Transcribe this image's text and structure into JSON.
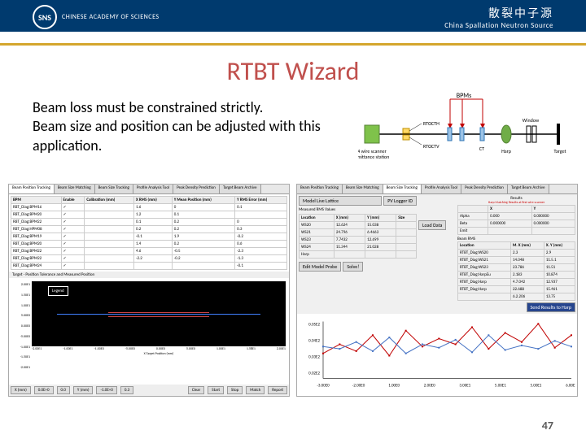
{
  "header": {
    "logoText": "SNS",
    "logoSubtext": "CHINESE ACADEMY OF SCIENCES",
    "cnTitle": "散裂中子源",
    "enTitle": "China Spallation Neutron Source"
  },
  "title": "RTBT Wizard",
  "descriptionLine1": "Beam loss must be constrained strictly.",
  "descriptionLine2": "Beam size and position can be adjusted with this application.",
  "diagram": {
    "bpmsLabel": "BPMs",
    "elements": [
      {
        "label": "4 wire scanner emittance station",
        "type": "box",
        "color": "#7fc24b",
        "x": 10
      },
      {
        "label": "RTOCTH",
        "type": "small",
        "color": "#ffd966",
        "x": 60,
        "above": true
      },
      {
        "label": "RTOCTV",
        "type": "small",
        "color": "#ffd966",
        "x": 60,
        "below": true
      },
      {
        "label": "",
        "type": "bpm",
        "color": "#9cc3e6",
        "x": 110
      },
      {
        "label": "",
        "type": "bpm",
        "color": "#9cc3e6",
        "x": 125
      },
      {
        "label": "CT",
        "type": "bpm",
        "color": "#9cc3e6",
        "x": 150,
        "below": true
      },
      {
        "label": "Harp",
        "type": "ellipse",
        "color": "#70ad47",
        "x": 180,
        "below": true
      },
      {
        "label": "Window",
        "type": "box-outline",
        "color": "#000",
        "x": 210,
        "above": true
      },
      {
        "label": "Target",
        "type": "bar",
        "color": "#000",
        "x": 245,
        "right": true
      }
    ],
    "lineColor": "#000",
    "arrowColor": "#c00000"
  },
  "leftPanel": {
    "tabs": [
      "Beam Position Tracking",
      "Beam Size Matching",
      "Beam Size Tracking",
      "Profile Analysis Tool",
      "Peak Density Prediction",
      "Target Beam Archive"
    ],
    "activeTab": 0,
    "columns": [
      "BPM",
      "Enable",
      "Calibration (mm)",
      "X RMS (mm)",
      "Y Mean Position (mm)",
      "Y RMS Error (mm)"
    ],
    "rows": [
      [
        "RBT_Diag:BPM16",
        "✓",
        "",
        "1.6",
        "0",
        "0.1"
      ],
      [
        "RBT_Diag:BPM20",
        "✓",
        "",
        "1.2",
        "0.1",
        ""
      ],
      [
        "RBT_Diag:BPM22",
        "✓",
        "",
        "0.1",
        "0.2",
        "0"
      ],
      [
        "RBT_Diag:HPM08",
        "✓",
        "",
        "0.2",
        "0.2",
        "0.3"
      ],
      [
        "RBT_Diag:BPM19",
        "✓",
        "",
        "-0.1",
        "1.9",
        "-0.2"
      ],
      [
        "RBT_Diag:BPM20",
        "✓",
        "",
        "1.4",
        "0.2",
        "0.6"
      ],
      [
        "RBT_Diag:BPM22",
        "✓",
        "",
        "4.6",
        "-0.5",
        "-2.3"
      ],
      [
        "RBT_Diag:BPM22",
        "✓",
        "",
        "-2.2",
        "-0.2",
        "-1.3"
      ],
      [
        "RBT_Diag:BPM24",
        "✓",
        "",
        "",
        "",
        "-0.1"
      ]
    ],
    "chartTitle": "Target - Position Tolerance and Measured Position",
    "legendTitle": "Legend",
    "yLabel": "Y Final Position (mm)",
    "xLabel": "X Target Position (mm)",
    "yTicks": [
      "2.00E1",
      "1.50E1",
      "1.00E1",
      "5.00E0",
      "0.00E0",
      "-5.00E0",
      "-1.00E1",
      "-1.50E1",
      "-2.00E1"
    ],
    "xTicks": [
      "-2.00E1",
      "-1.00E1",
      "-1.00E0",
      "-5.00E0",
      "0.00E0",
      "5.00E0",
      "1.00E1",
      "1.58E1",
      "2.00E1"
    ],
    "bottomControls": {
      "labels": [
        "X (mm)",
        "0.0E+0",
        "0.0",
        "Y (mm)",
        "-1.0E+0",
        "0.3"
      ],
      "buttons": [
        "Clear",
        "Start",
        "Stop",
        "Match",
        "Report"
      ]
    }
  },
  "rightPanel": {
    "tabs": [
      "Beam Position Tracking",
      "Beam Size Matching",
      "Beam Size Tracking",
      "Profile Analysis Tool",
      "Peak Density Prediction",
      "Target Beam Archive"
    ],
    "activeTab": 2,
    "modelSelect": "Model Live Lattice",
    "pvLogger": "PV Logger ID",
    "measuredTitle": "Measured RMS Values",
    "measuredCols": [
      "Location",
      "X (mm)",
      "Y (mm)",
      "Size"
    ],
    "measuredRows": [
      [
        "WS20",
        "12.624",
        "15.038",
        ""
      ],
      [
        "WS21",
        "24.796",
        "6.4663",
        ""
      ],
      [
        "WS23",
        "7.7432",
        "12.699",
        ""
      ],
      [
        "WS24",
        "11.344",
        "21.028",
        ""
      ],
      [
        "Harp",
        "",
        "",
        ""
      ]
    ],
    "loadButton": "Load Data",
    "editButton": "Edit Model Probe",
    "solveButton": "Solve!",
    "resultsTitle": "Results",
    "resultsSubtitle": "Harp Matching Results at first wire scanner",
    "resultsCols": [
      "",
      "X",
      "Y"
    ],
    "resultsRows1": [
      [
        "Alpha",
        "0.000",
        "0.000000"
      ],
      [
        "Beta",
        "0.000000",
        "0.000000"
      ],
      [
        "Emit",
        "",
        ""
      ]
    ],
    "beamTitle": "Beam RMS",
    "beamCols": [
      "Location",
      "M. X (mm)",
      "X. Y (mm)"
    ],
    "beamRows": [
      [
        "RTBT_Diag:WS20",
        "2.3",
        "2.9"
      ],
      [
        "RTBT_Diag:WS21",
        "14.048",
        "11.5.1"
      ],
      [
        "RTBT_Diag:WS23",
        "23.786",
        "11.51"
      ],
      [
        "RTBT_Diag:HarpEu",
        "2.183",
        "10.874"
      ],
      [
        "RTBT_Diag:Harp",
        "4.7.042",
        "12.937"
      ],
      [
        "RTBT_Diag:Harp",
        "22.688",
        "15.461"
      ],
      [
        "",
        "6.2.206",
        "13.75"
      ]
    ],
    "sendButton": "Send Results to Harp",
    "chart": {
      "series1Color": "#c00000",
      "series2Color": "#4472c4",
      "yTicks": [
        "0.05E2",
        "0.04E2",
        "0.03E2",
        "0.02E2"
      ],
      "xTicks": [
        "-3.00E0",
        "-2.00E0",
        "1.00E0",
        "2.00E0",
        "3.00E1",
        "5.00E1",
        "5.00E1",
        "6.00E1"
      ],
      "series1": [
        22,
        30,
        24,
        38,
        20,
        42,
        28,
        35,
        30,
        45,
        26,
        40,
        32,
        48,
        27,
        38
      ],
      "series2": [
        28,
        26,
        32,
        24,
        36,
        22,
        30,
        27,
        34,
        23,
        38,
        25,
        29,
        26,
        33,
        28
      ]
    }
  },
  "pageNumber": "47"
}
